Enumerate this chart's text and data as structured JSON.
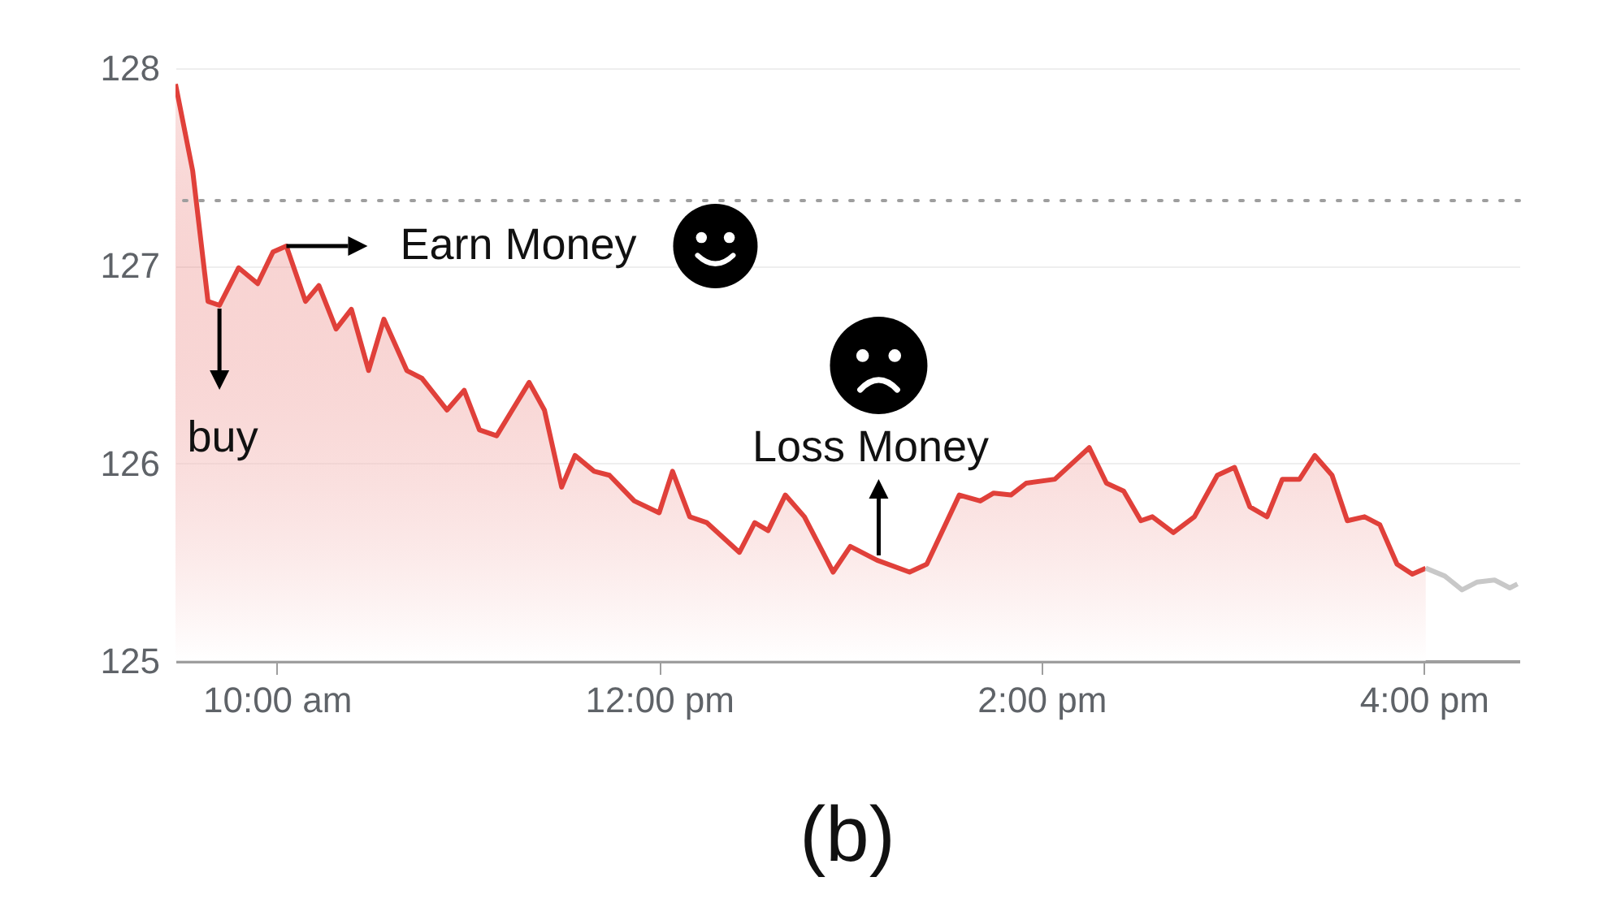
{
  "chart_data": {
    "type": "line",
    "annotations": [
      {
        "text": "buy",
        "x": 9.7,
        "y": 126.8
      },
      {
        "text": "Earn Money",
        "x": 10.05,
        "y": 127.1
      },
      {
        "text": "Loss Money",
        "x": 13.14,
        "y": 125.51
      },
      "(b)"
    ],
    "series": [
      {
        "type": "area",
        "color": "#e0403a",
        "x": [
          9.47,
          9.56,
          9.64,
          9.7,
          9.8,
          9.9,
          9.98,
          10.05,
          10.15,
          10.22,
          10.31,
          10.39,
          10.48,
          10.56,
          10.68,
          10.76,
          10.89,
          10.98,
          11.06,
          11.15,
          11.32,
          11.4,
          11.49,
          11.56,
          11.66,
          11.74,
          11.87,
          12.0,
          12.07,
          12.16,
          12.25,
          12.42,
          12.5,
          12.57,
          12.66,
          12.76,
          12.91,
          13.0,
          13.14,
          13.31,
          13.4,
          13.57,
          13.68,
          13.75,
          13.84,
          13.92,
          14.07,
          14.25,
          14.34,
          14.43,
          14.52,
          14.58,
          14.69,
          14.8,
          14.92,
          15.01,
          15.09,
          15.18,
          15.26,
          15.35,
          15.43,
          15.52,
          15.6,
          15.69,
          15.77,
          15.86,
          15.94,
          16.01
        ],
        "values": [
          127.92,
          127.48,
          126.82,
          126.8,
          126.99,
          126.91,
          127.07,
          127.1,
          126.82,
          126.9,
          126.68,
          126.78,
          126.47,
          126.73,
          126.47,
          126.43,
          126.27,
          126.37,
          126.17,
          126.14,
          126.41,
          126.27,
          125.88,
          126.04,
          125.96,
          125.94,
          125.81,
          125.75,
          125.96,
          125.73,
          125.7,
          125.55,
          125.7,
          125.66,
          125.84,
          125.73,
          125.45,
          125.58,
          125.51,
          125.45,
          125.49,
          125.84,
          125.81,
          125.85,
          125.84,
          125.9,
          125.92,
          126.08,
          125.9,
          125.86,
          125.71,
          125.73,
          125.65,
          125.73,
          125.94,
          125.98,
          125.78,
          125.73,
          125.92,
          125.92,
          126.04,
          125.94,
          125.71,
          125.73,
          125.69,
          125.49,
          125.44,
          125.47
        ]
      },
      {
        "color": "#c8c8c8",
        "x": [
          16.01,
          16.11,
          16.2,
          16.28,
          16.37,
          16.45,
          16.49
        ],
        "values": [
          125.47,
          125.43,
          125.36,
          125.4,
          125.41,
          125.37,
          125.39
        ]
      }
    ],
    "xlim": [
      9.47,
      16.5
    ],
    "xticks": [
      {
        "value": 10,
        "label": "10:00 am"
      },
      {
        "value": 12,
        "label": "12:00 pm"
      },
      {
        "value": 14,
        "label": "2:00 pm"
      },
      {
        "value": 16,
        "label": "4:00 pm"
      }
    ],
    "ylim": [
      125,
      128
    ],
    "yticks": [
      125,
      126,
      127,
      128
    ],
    "grid": "y",
    "ref_lines": [
      {
        "axis": "y",
        "value": 127.33,
        "line_style": "dotted",
        "color": "#9e9e9e"
      }
    ]
  }
}
